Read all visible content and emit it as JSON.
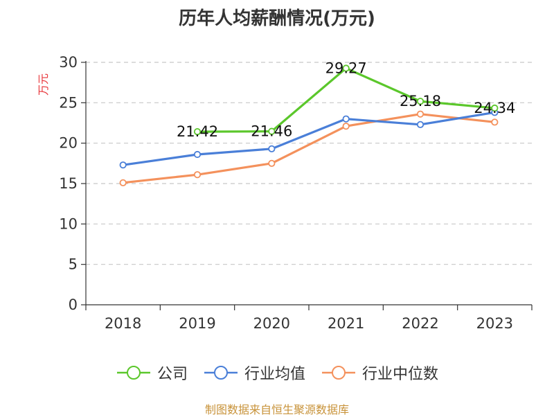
{
  "title": "历年人均薪酬情况(万元)",
  "source": "制图数据来自恒生聚源数据库",
  "colors": {
    "company": "#5bc72b",
    "industry_avg": "#4a7fd8",
    "industry_median": "#f4915c",
    "axis": "#333333",
    "grid": "#c8c8c8",
    "ylabel": "#e8383d"
  },
  "chart_data": {
    "type": "line",
    "title": "历年人均薪酬情况(万元)",
    "ylabel": "万元",
    "xlabel": "",
    "categories": [
      "2018",
      "2019",
      "2020",
      "2021",
      "2022",
      "2023"
    ],
    "ylim": [
      0,
      30
    ],
    "yticks": [
      0,
      5,
      10,
      15,
      20,
      25,
      30
    ],
    "grid": "horizontal-dashed",
    "legend_position": "bottom",
    "series": [
      {
        "name": "公司",
        "color_key": "company",
        "values": [
          null,
          21.42,
          21.46,
          29.27,
          25.18,
          24.34
        ],
        "labels": [
          null,
          "21.42",
          "21.46",
          "29.27",
          "25.18",
          "24.34"
        ]
      },
      {
        "name": "行业均值",
        "color_key": "industry_avg",
        "values": [
          17.3,
          18.6,
          19.3,
          23.0,
          22.3,
          23.8
        ]
      },
      {
        "name": "行业中位数",
        "color_key": "industry_median",
        "values": [
          15.1,
          16.1,
          17.5,
          22.1,
          23.6,
          22.6
        ]
      }
    ]
  }
}
